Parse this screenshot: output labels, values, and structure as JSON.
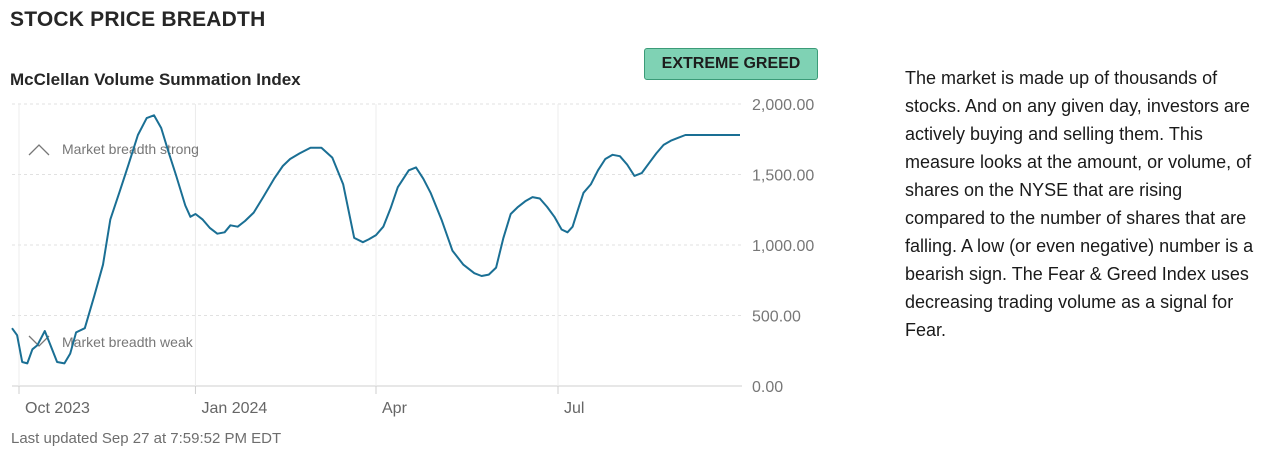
{
  "header": {
    "title": "STOCK PRICE BREADTH"
  },
  "badge": {
    "label": "EXTREME GREED",
    "color": "#7fd2b4"
  },
  "description": "The market is made up of thousands of stocks. And on any given day, investors are actively buying and selling them. This measure looks at the amount, or volume, of shares on the NYSE that are rising compared to the number of shares that are falling. A low (or even negative) number is a bearish sign. The Fear & Greed Index uses decreasing trading volume as a signal for Fear.",
  "footer": {
    "updated": "Last updated Sep 27 at 7:59:52 PM EDT"
  },
  "chart_data": {
    "type": "line",
    "title": "McClellan Volume Summation Index",
    "xlabel": "",
    "ylabel": "",
    "ylim": [
      0,
      2000
    ],
    "xlim": [
      0,
      1
    ],
    "line_color": "#1a6f94",
    "y_ticks": [
      0,
      500,
      1000,
      1500,
      2000
    ],
    "y_tick_labels": [
      "0.00",
      "500.00",
      "1,000.00",
      "1,500.00",
      "2,000.00"
    ],
    "x_ticks": [
      {
        "label": "Oct 2023",
        "pos": 0.0
      },
      {
        "label": "Jan 2024",
        "pos": 0.252
      },
      {
        "label": "Apr",
        "pos": 0.5
      },
      {
        "label": "Jul",
        "pos": 0.75
      }
    ],
    "annotations": {
      "strong": {
        "label": "Market breadth strong",
        "icon": "chevron-up-icon"
      },
      "weak": {
        "label": "Market breadth weak",
        "icon": "chevron-down-icon"
      }
    },
    "series": [
      {
        "name": "McClellan Volume Summation Index",
        "x": [
          0.0,
          0.007,
          0.014,
          0.021,
          0.028,
          0.035,
          0.045,
          0.052,
          0.062,
          0.072,
          0.08,
          0.088,
          0.1,
          0.113,
          0.125,
          0.135,
          0.148,
          0.16,
          0.173,
          0.185,
          0.195,
          0.205,
          0.215,
          0.225,
          0.238,
          0.245,
          0.252,
          0.262,
          0.272,
          0.282,
          0.292,
          0.3,
          0.31,
          0.32,
          0.332,
          0.345,
          0.36,
          0.372,
          0.382,
          0.395,
          0.41,
          0.425,
          0.44,
          0.455,
          0.47,
          0.482,
          0.49,
          0.5,
          0.51,
          0.52,
          0.53,
          0.545,
          0.555,
          0.565,
          0.575,
          0.59,
          0.605,
          0.62,
          0.635,
          0.645,
          0.655,
          0.665,
          0.675,
          0.685,
          0.695,
          0.705,
          0.715,
          0.725,
          0.735,
          0.745,
          0.755,
          0.763,
          0.77,
          0.778,
          0.785,
          0.795,
          0.805,
          0.815,
          0.825,
          0.835,
          0.845,
          0.855,
          0.865,
          0.875,
          0.885,
          0.895,
          0.905,
          0.915,
          0.925,
          0.935,
          0.945,
          0.955,
          0.965,
          0.975,
          0.985,
          0.995,
          1.0
        ],
        "values": [
          410,
          360,
          170,
          160,
          260,
          290,
          390,
          300,
          170,
          160,
          230,
          380,
          410,
          640,
          860,
          1180,
          1380,
          1570,
          1780,
          1900,
          1920,
          1830,
          1660,
          1500,
          1280,
          1200,
          1220,
          1180,
          1120,
          1080,
          1090,
          1140,
          1130,
          1170,
          1230,
          1340,
          1470,
          1560,
          1610,
          1650,
          1690,
          1690,
          1620,
          1430,
          1050,
          1020,
          1040,
          1070,
          1130,
          1260,
          1410,
          1530,
          1550,
          1470,
          1370,
          1180,
          960,
          860,
          800,
          780,
          790,
          840,
          1050,
          1220,
          1270,
          1310,
          1340,
          1330,
          1270,
          1200,
          1110,
          1090,
          1130,
          1260,
          1370,
          1430,
          1530,
          1610,
          1640,
          1630,
          1570,
          1490,
          1510,
          1580,
          1650,
          1710,
          1740,
          1760,
          1780,
          1780,
          1780,
          1780,
          1780,
          1780,
          1780,
          1780,
          1780
        ]
      }
    ]
  }
}
